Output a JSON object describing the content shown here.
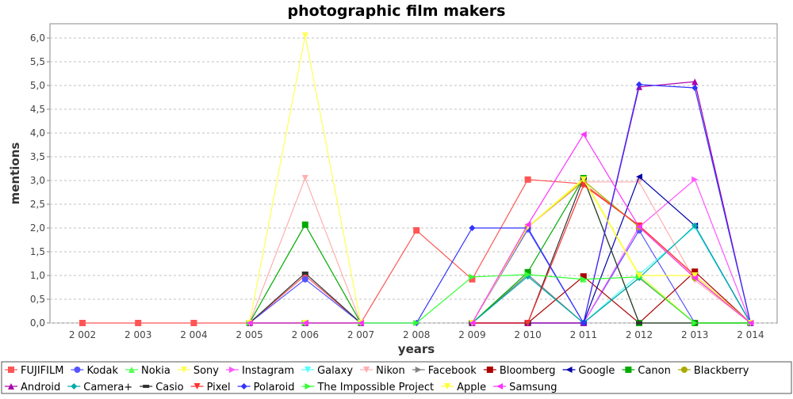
{
  "chart_data": {
    "type": "line",
    "title": "photographic film makers",
    "xlabel": "years",
    "ylabel": "mentions",
    "x": [
      "2 002",
      "2 003",
      "2 004",
      "2 005",
      "2 006",
      "2 007",
      "2 008",
      "2 009",
      "2 010",
      "2 011",
      "2 012",
      "2 013",
      "2 014"
    ],
    "ylim": [
      0,
      6.3
    ],
    "yticks": [
      "0,0",
      "0,5",
      "1,0",
      "1,5",
      "2,0",
      "2,5",
      "3,0",
      "3,5",
      "4,0",
      "4,5",
      "5,0",
      "5,5",
      "6,0"
    ],
    "grid": true,
    "legend_position": "bottom",
    "series": [
      {
        "name": "FUJIFILM",
        "color": "#ff5555",
        "marker": "square",
        "values": [
          0,
          0,
          0,
          0,
          1,
          0,
          1.95,
          0.92,
          3.02,
          2.93,
          2.05,
          1,
          0
        ]
      },
      {
        "name": "Kodak",
        "color": "#5555ff",
        "marker": "circle",
        "values": [
          null,
          null,
          null,
          0,
          0.92,
          0,
          null,
          0,
          1.97,
          0,
          1.95,
          0,
          0
        ]
      },
      {
        "name": "Nokia",
        "color": "#55ff55",
        "marker": "triangle-up",
        "values": [
          null,
          null,
          null,
          0,
          0,
          0,
          null,
          0,
          1.02,
          0.92,
          0.97,
          0,
          0
        ]
      },
      {
        "name": "Sony",
        "color": "#ffff55",
        "marker": "triangle-down",
        "values": [
          null,
          null,
          null,
          0,
          6.05,
          0,
          null,
          0,
          2.02,
          3.05,
          1.02,
          0,
          0
        ]
      },
      {
        "name": "Instagram",
        "color": "#ff55ff",
        "marker": "triangle-right",
        "values": [
          null,
          null,
          null,
          0,
          0,
          0,
          null,
          0,
          0,
          0,
          2.02,
          3.02,
          0
        ]
      },
      {
        "name": "Galaxy",
        "color": "#55ffff",
        "marker": "triangle-down",
        "values": [
          null,
          null,
          null,
          0,
          0,
          0,
          null,
          0,
          0,
          0,
          1.02,
          2.02,
          0
        ]
      },
      {
        "name": "Nikon",
        "color": "#ffafaf",
        "marker": "triangle-down",
        "values": [
          null,
          null,
          null,
          0,
          3.05,
          0,
          null,
          0,
          2.02,
          2.97,
          2.97,
          0.9,
          0
        ]
      },
      {
        "name": "Facebook",
        "color": "#808080",
        "marker": "triangle-right",
        "values": [
          null,
          null,
          null,
          0,
          0,
          0,
          null,
          0,
          1.02,
          0,
          0.95,
          0,
          0
        ]
      },
      {
        "name": "Bloomberg",
        "color": "#aa0000",
        "marker": "square",
        "values": [
          null,
          null,
          null,
          0,
          0,
          0,
          null,
          0,
          0,
          0.98,
          0,
          1.08,
          0
        ]
      },
      {
        "name": "Google",
        "color": "#0000aa",
        "marker": "triangle-left",
        "values": [
          null,
          null,
          null,
          0,
          0,
          0,
          null,
          0,
          0,
          0,
          3.08,
          2.05,
          0
        ]
      },
      {
        "name": "Canon",
        "color": "#00aa00",
        "marker": "square",
        "values": [
          null,
          null,
          null,
          0,
          2.07,
          0,
          null,
          0,
          1.07,
          3.05,
          0,
          0,
          0
        ]
      },
      {
        "name": "Blackberry",
        "color": "#aaaa00",
        "marker": "circle",
        "values": [
          null,
          null,
          null,
          0,
          0,
          0,
          null,
          0,
          2.02,
          3.0,
          2.02,
          0.95,
          0
        ]
      },
      {
        "name": "Android",
        "color": "#aa00aa",
        "marker": "triangle-up",
        "values": [
          null,
          null,
          null,
          0,
          0,
          0,
          null,
          0,
          0,
          0,
          4.97,
          5.08,
          0
        ]
      },
      {
        "name": "Camera+",
        "color": "#00aaaa",
        "marker": "diamond",
        "values": [
          null,
          null,
          null,
          0,
          0,
          0,
          null,
          0,
          0.98,
          0,
          0.95,
          2.05,
          0
        ]
      },
      {
        "name": "Casio",
        "color": "#333333",
        "marker": "dash",
        "values": [
          null,
          null,
          null,
          0,
          1.05,
          0,
          null,
          0,
          0,
          3.05,
          0,
          0,
          0
        ]
      },
      {
        "name": "Pixel",
        "color": "#ff3333",
        "marker": "triangle-down",
        "values": [
          null,
          null,
          null,
          0,
          0,
          0,
          null,
          0,
          0,
          2.9,
          2.05,
          1.0,
          0
        ]
      },
      {
        "name": "Polaroid",
        "color": "#3333ff",
        "marker": "diamond",
        "values": [
          null,
          null,
          null,
          0,
          0,
          0,
          0,
          2.0,
          2.0,
          0,
          5.02,
          4.95,
          0
        ]
      },
      {
        "name": "The Impossible Project",
        "color": "#33ff33",
        "marker": "triangle-right",
        "values": [
          null,
          null,
          null,
          0,
          0,
          0,
          0,
          0.97,
          1.02,
          0.92,
          0.97,
          0,
          0
        ]
      },
      {
        "name": "Apple",
        "color": "#ffff33",
        "marker": "triangle-down",
        "values": [
          null,
          null,
          null,
          0,
          0,
          0,
          null,
          0,
          2.02,
          3.02,
          1.0,
          1.0,
          0
        ]
      },
      {
        "name": "Samsung",
        "color": "#ff33ff",
        "marker": "triangle-left",
        "values": [
          null,
          null,
          null,
          0,
          0,
          0,
          null,
          0,
          2.07,
          3.97,
          2.02,
          0.95,
          0
        ]
      }
    ]
  }
}
